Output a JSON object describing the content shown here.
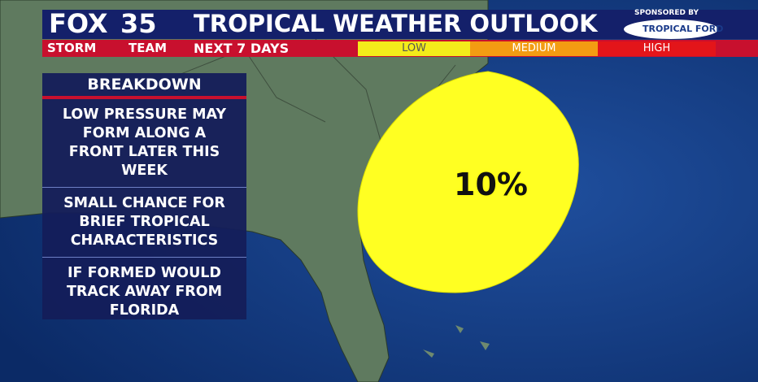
{
  "header": {
    "brand": "FOX",
    "channel": "35",
    "team": "STORM",
    "team_suffix": "TEAM",
    "title": "TROPICAL WEATHER OUTLOOK",
    "subtitle": "NEXT 7 DAYS",
    "legend": [
      "LOW",
      "MEDIUM",
      "HIGH"
    ],
    "sponsor_label": "SPONSORED BY",
    "sponsor": "TROPICAL FORD"
  },
  "breakdown": {
    "title": "BREAKDOWN",
    "items": [
      "LOW PRESSURE MAY FORM ALONG A FRONT LATER THIS WEEK",
      "SMALL CHANCE FOR BRIEF TROPICAL CHARACTERISTICS",
      "IF FORMED WOULD TRACK AWAY FROM FLORIDA"
    ]
  },
  "map": {
    "area_label": "10%"
  }
}
